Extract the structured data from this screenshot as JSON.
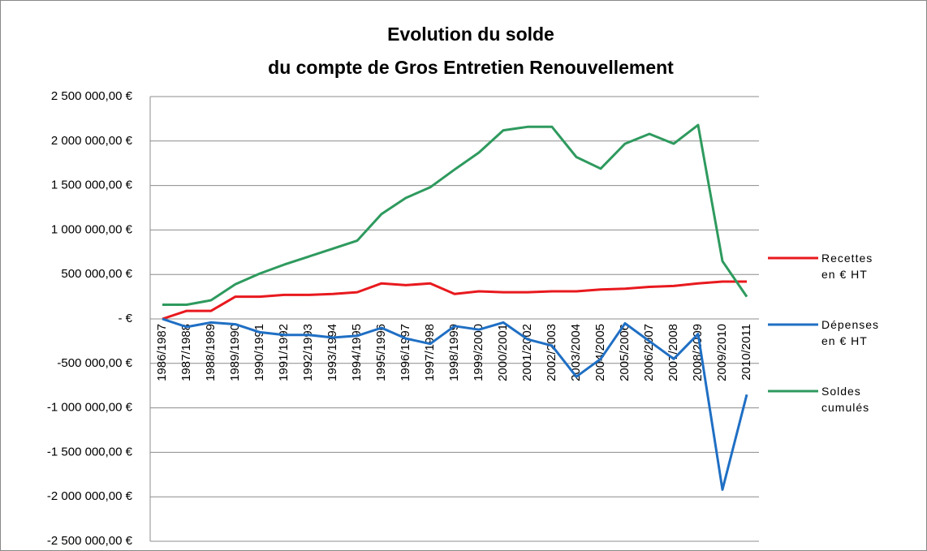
{
  "chart_data": {
    "type": "line",
    "title": [
      "Evolution du solde",
      "du compte de Gros Entretien Renouvellement"
    ],
    "categories": [
      "1986/1987",
      "1987/1988",
      "1988/1989",
      "1989/1990",
      "1990/1991",
      "1991/1992",
      "1992/1993",
      "1993/1994",
      "1994/1995",
      "1995/1996",
      "1996/1997",
      "1997/1998",
      "1998/1999",
      "1999/2000",
      "2000/2001",
      "2001/2002",
      "2002/2003",
      "2003/2004",
      "2004/2005",
      "2005/2006",
      "2006/2007",
      "2007/2008",
      "2008/2009",
      "2009/2010",
      "2010/2011"
    ],
    "series": [
      {
        "name": "Recettes en € HT",
        "color": "#e8191e",
        "values": [
          0,
          90000,
          90000,
          250000,
          250000,
          270000,
          270000,
          280000,
          300000,
          400000,
          380000,
          400000,
          280000,
          310000,
          300000,
          300000,
          310000,
          310000,
          330000,
          340000,
          360000,
          370000,
          400000,
          420000,
          420000
        ]
      },
      {
        "name": "Dépenses en € HT",
        "color": "#1f6fc4",
        "values": [
          0,
          -90000,
          -40000,
          -60000,
          -150000,
          -180000,
          -180000,
          -210000,
          -190000,
          -100000,
          -220000,
          -280000,
          -80000,
          -120000,
          -40000,
          -230000,
          -300000,
          -650000,
          -450000,
          -50000,
          -250000,
          -450000,
          -170000,
          -1920000,
          -850000
        ]
      },
      {
        "name": "Soldes cumulés",
        "color": "#2e9a5e",
        "values": [
          160000,
          160000,
          210000,
          390000,
          510000,
          610000,
          700000,
          790000,
          880000,
          1180000,
          1360000,
          1480000,
          1680000,
          1870000,
          2120000,
          2160000,
          2160000,
          1820000,
          1690000,
          1970000,
          2080000,
          1970000,
          2180000,
          650000,
          250000
        ]
      }
    ],
    "ylim": [
      -2500000,
      2500000
    ],
    "yticks": [
      {
        "value": 2500000,
        "label": "2 500 000,00 €"
      },
      {
        "value": 2000000,
        "label": "2 000 000,00 €"
      },
      {
        "value": 1500000,
        "label": "1 500 000,00 €"
      },
      {
        "value": 1000000,
        "label": "1 000 000,00 €"
      },
      {
        "value": 500000,
        "label": "500 000,00 €"
      },
      {
        "value": 0,
        "label": "-      €"
      },
      {
        "value": -500000,
        "label": "-500 000,00 €"
      },
      {
        "value": -1000000,
        "label": "-1 000 000,00 €"
      },
      {
        "value": -1500000,
        "label": "-1 500 000,00 €"
      },
      {
        "value": -2000000,
        "label": "-2 000 000,00 €"
      },
      {
        "value": -2500000,
        "label": "-2 500 000,00 €"
      }
    ],
    "grid": true,
    "legend": "right"
  }
}
